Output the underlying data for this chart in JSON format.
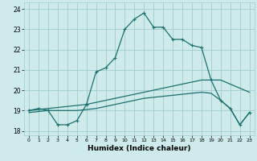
{
  "xlabel": "Humidex (Indice chaleur)",
  "xlim": [
    -0.5,
    23.5
  ],
  "ylim": [
    17.8,
    24.3
  ],
  "yticks": [
    18,
    19,
    20,
    21,
    22,
    23,
    24
  ],
  "xticks": [
    0,
    1,
    2,
    3,
    4,
    5,
    6,
    7,
    8,
    9,
    10,
    11,
    12,
    13,
    14,
    15,
    16,
    17,
    18,
    19,
    20,
    21,
    22,
    23
  ],
  "bg_color": "#ceeaea",
  "grid_color": "#a0cccc",
  "line_color": "#1a7070",
  "series1_x": [
    0,
    1,
    2,
    3,
    4,
    5,
    6,
    7,
    8,
    9,
    10,
    11,
    12,
    13,
    14,
    15,
    16,
    17,
    18,
    19,
    20,
    21,
    22,
    23
  ],
  "series1_y": [
    19.0,
    19.1,
    19.0,
    18.3,
    18.3,
    18.5,
    19.3,
    20.9,
    21.1,
    21.6,
    23.0,
    23.5,
    23.8,
    23.1,
    23.1,
    22.5,
    22.5,
    22.2,
    22.1,
    20.5,
    19.5,
    19.1,
    18.3,
    18.9
  ],
  "series2_x": [
    0,
    1,
    2,
    3,
    4,
    5,
    6,
    7,
    8,
    9,
    10,
    11,
    12,
    13,
    14,
    15,
    16,
    17,
    18,
    19,
    20,
    21,
    22,
    23
  ],
  "series2_y": [
    19.0,
    19.05,
    19.1,
    19.15,
    19.2,
    19.25,
    19.3,
    19.4,
    19.5,
    19.6,
    19.7,
    19.8,
    19.9,
    20.0,
    20.1,
    20.2,
    20.3,
    20.4,
    20.5,
    20.5,
    20.5,
    20.3,
    20.1,
    19.9
  ],
  "series3_x": [
    0,
    1,
    2,
    3,
    4,
    5,
    6,
    7,
    8,
    9,
    10,
    11,
    12,
    13,
    14,
    15,
    16,
    17,
    18,
    19,
    20,
    21,
    22,
    23
  ],
  "series3_y": [
    18.9,
    18.95,
    19.0,
    19.0,
    19.0,
    19.0,
    19.05,
    19.1,
    19.2,
    19.3,
    19.4,
    19.5,
    19.6,
    19.65,
    19.7,
    19.75,
    19.8,
    19.85,
    19.9,
    19.85,
    19.5,
    19.1,
    18.3,
    18.9
  ]
}
